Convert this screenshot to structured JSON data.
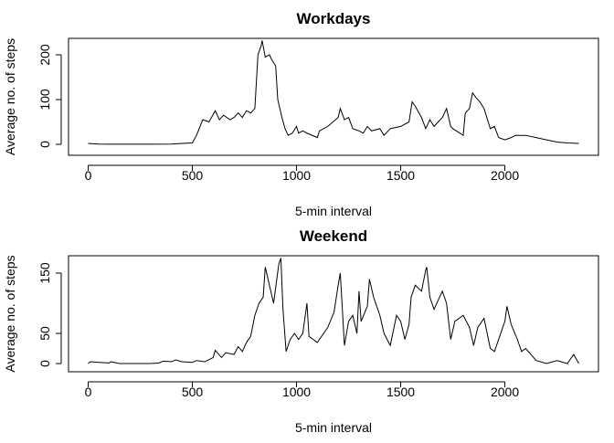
{
  "chart_data": [
    {
      "type": "line",
      "title": "Workdays",
      "x_label": "5-min interval",
      "y_label": "Average no. of steps",
      "color": "#000000",
      "x": [
        0,
        50,
        100,
        200,
        300,
        400,
        450,
        500,
        520,
        550,
        580,
        610,
        630,
        650,
        680,
        700,
        720,
        740,
        760,
        780,
        800,
        815,
        830,
        835,
        850,
        870,
        880,
        900,
        910,
        930,
        945,
        960,
        980,
        1000,
        1010,
        1030,
        1050,
        1100,
        1110,
        1150,
        1200,
        1210,
        1230,
        1250,
        1270,
        1300,
        1320,
        1340,
        1360,
        1400,
        1420,
        1450,
        1500,
        1540,
        1555,
        1570,
        1600,
        1620,
        1640,
        1660,
        1700,
        1720,
        1740,
        1750,
        1800,
        1810,
        1830,
        1845,
        1860,
        1880,
        1900,
        1920,
        1930,
        1950,
        1970,
        2000,
        2030,
        2050,
        2100,
        2150,
        2200,
        2250,
        2300,
        2355
      ],
      "values": [
        2,
        0.5,
        0.3,
        0.2,
        0.3,
        0.5,
        2,
        3,
        20,
        55,
        50,
        75,
        55,
        65,
        55,
        60,
        70,
        60,
        75,
        70,
        80,
        200,
        220,
        232,
        195,
        200,
        190,
        175,
        100,
        60,
        35,
        20,
        25,
        40,
        25,
        30,
        25,
        15,
        30,
        40,
        60,
        80,
        55,
        60,
        35,
        30,
        25,
        40,
        30,
        35,
        20,
        35,
        40,
        50,
        95,
        85,
        60,
        35,
        55,
        40,
        60,
        80,
        40,
        35,
        20,
        70,
        80,
        115,
        105,
        95,
        80,
        50,
        35,
        40,
        15,
        10,
        15,
        20,
        20,
        15,
        10,
        5,
        3,
        2
      ],
      "xlim": [
        -94.2,
        2449.2
      ],
      "xticks": [
        0,
        500,
        1000,
        1500,
        2000
      ],
      "ylim": [
        -24.5,
        236.7
      ],
      "yticks": [
        0,
        100,
        200
      ]
    },
    {
      "type": "line",
      "title": "Weekend",
      "x_label": "5-min interval",
      "y_label": "Average no. of steps",
      "color": "#000000",
      "x": [
        0,
        10,
        50,
        100,
        110,
        150,
        300,
        340,
        360,
        400,
        420,
        450,
        500,
        520,
        560,
        600,
        610,
        640,
        660,
        700,
        720,
        740,
        760,
        780,
        800,
        820,
        840,
        850,
        870,
        890,
        915,
        925,
        935,
        950,
        970,
        990,
        1010,
        1030,
        1050,
        1060,
        1080,
        1100,
        1150,
        1180,
        1200,
        1210,
        1230,
        1250,
        1270,
        1290,
        1300,
        1310,
        1340,
        1350,
        1370,
        1400,
        1420,
        1450,
        1480,
        1500,
        1520,
        1540,
        1550,
        1570,
        1600,
        1620,
        1625,
        1640,
        1660,
        1680,
        1700,
        1720,
        1740,
        1760,
        1800,
        1830,
        1850,
        1870,
        1900,
        1930,
        1950,
        2000,
        2010,
        2030,
        2060,
        2080,
        2100,
        2150,
        2200,
        2250,
        2300,
        2330,
        2355
      ],
      "values": [
        0,
        3,
        2,
        1,
        3,
        0,
        0,
        1,
        4,
        3,
        6,
        3,
        2,
        5,
        3,
        10,
        22,
        10,
        18,
        15,
        28,
        20,
        35,
        45,
        80,
        100,
        110,
        160,
        130,
        100,
        165,
        175,
        90,
        20,
        40,
        50,
        40,
        50,
        100,
        45,
        40,
        35,
        60,
        85,
        130,
        150,
        30,
        70,
        80,
        50,
        120,
        70,
        95,
        140,
        110,
        80,
        50,
        30,
        80,
        70,
        40,
        65,
        110,
        130,
        120,
        155,
        160,
        110,
        90,
        105,
        120,
        100,
        40,
        70,
        80,
        60,
        30,
        60,
        75,
        25,
        20,
        70,
        95,
        65,
        40,
        20,
        25,
        5,
        0,
        5,
        0,
        15,
        0
      ],
      "xlim": [
        -94.2,
        2449.2
      ],
      "xticks": [
        0,
        500,
        1000,
        1500,
        2000
      ],
      "ylim": [
        -13.6,
        178.8
      ],
      "yticks": [
        0,
        50,
        150
      ]
    }
  ]
}
